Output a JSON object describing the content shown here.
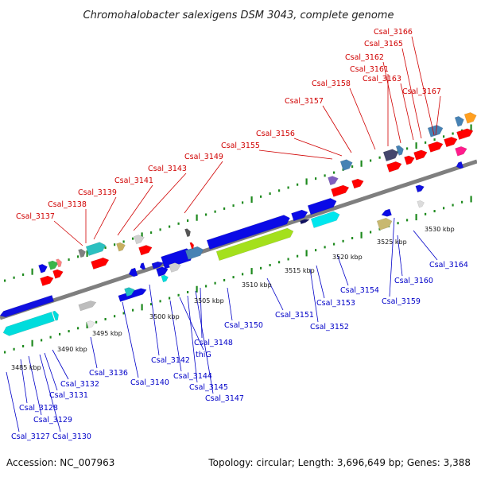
{
  "title": "Chromohalobacter salexigens DSM 3043, complete genome",
  "footer": {
    "accession": "Accession: NC_007963",
    "summary": "Topology: circular; Length: 3,696,649 bp; Genes: 3,388"
  },
  "colors": {
    "backbone": "#7f7f7f",
    "ticks": "#1e8a1e",
    "label_forward": "#d00000",
    "label_reverse": "#0000c8"
  },
  "ticks": [
    "3485 kbp",
    "3490 kbp",
    "3495 kbp",
    "3500 kbp",
    "3505 kbp",
    "3510 kbp",
    "3515 kbp",
    "3520 kbp",
    "3525 kbp",
    "3530 kbp"
  ],
  "labels": {
    "top": [
      "Csal_3137",
      "Csal_3138",
      "Csal_3139",
      "Csal_3141",
      "Csal_3143",
      "Csal_3149",
      "Csal_3155",
      "Csal_3156",
      "Csal_3157",
      "Csal_3158",
      "Csal_3161",
      "Csal_3162",
      "Csal_3163",
      "Csal_3165",
      "Csal_3166",
      "Csal_3167"
    ],
    "bottom": [
      "Csal_3127",
      "Csal_3128",
      "Csal_3129",
      "Csal_3130",
      "Csal_3131",
      "Csal_3132",
      "Csal_3136",
      "Csal_3140",
      "Csal_3142",
      "Csal_3144",
      "thiG",
      "Csal_3145",
      "Csal_3147",
      "Csal_3148",
      "Csal_3150",
      "Csal_3151",
      "Csal_3152",
      "Csal_3153",
      "Csal_3154",
      "Csal_3159",
      "Csal_3160",
      "Csal_3164"
    ]
  }
}
